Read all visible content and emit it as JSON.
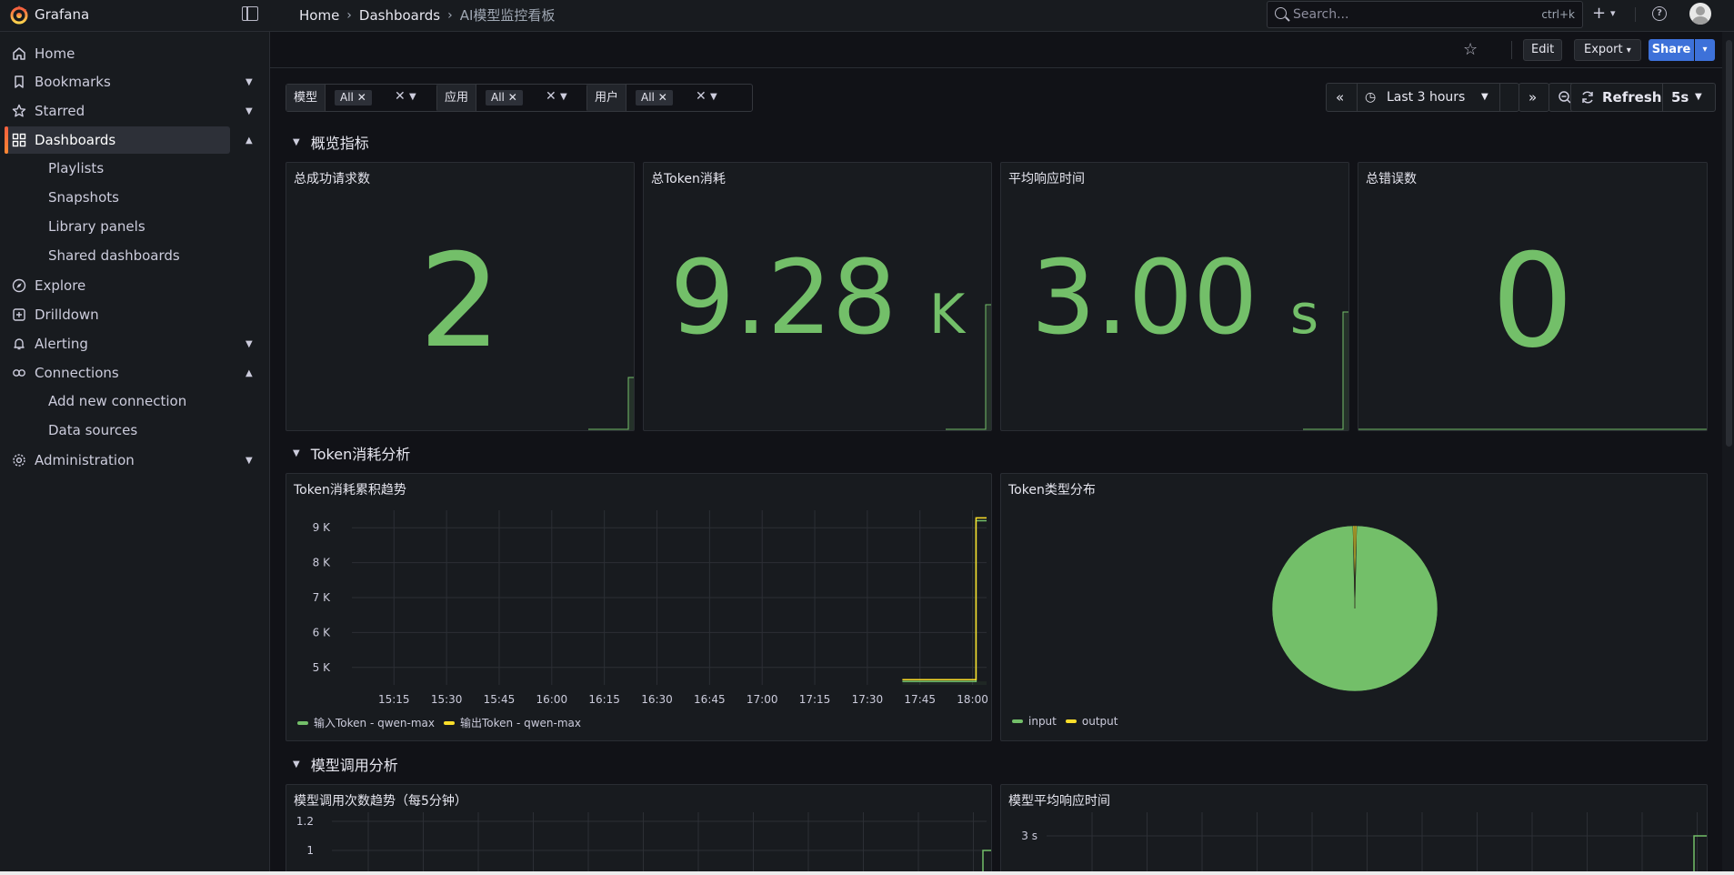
{
  "app": {
    "brand": "Grafana"
  },
  "breadcrumbs": [
    "Home",
    "Dashboards",
    "AI模型监控看板"
  ],
  "search": {
    "placeholder": "Search...",
    "shortcut": "ctrl+k"
  },
  "nav": {
    "home": "Home",
    "bookmarks": "Bookmarks",
    "starred": "Starred",
    "dashboards": "Dashboards",
    "dashboards_children": [
      "Playlists",
      "Snapshots",
      "Library panels",
      "Shared dashboards"
    ],
    "explore": "Explore",
    "drilldown": "Drilldown",
    "alerting": "Alerting",
    "connections": "Connections",
    "connections_children": [
      "Add new connection",
      "Data sources"
    ],
    "administration": "Administration"
  },
  "toolbar": {
    "edit": "Edit",
    "export": "Export",
    "share": "Share"
  },
  "variables": [
    {
      "label": "模型",
      "value": "All"
    },
    {
      "label": "应用",
      "value": "All"
    },
    {
      "label": "用户",
      "value": "All"
    }
  ],
  "timepicker": {
    "range": "Last 3 hours",
    "refresh": "Refresh",
    "interval": "5s"
  },
  "rows": {
    "overview": "概览指标",
    "token": "Token消耗分析",
    "model": "模型调用分析"
  },
  "stats": [
    {
      "title": "总成功请求数",
      "value": "2",
      "unit": ""
    },
    {
      "title": "总Token消耗",
      "value": "9.28",
      "unit": "K"
    },
    {
      "title": "平均响应时间",
      "value": "3.00",
      "unit": "s"
    },
    {
      "title": "总错误数",
      "value": "0",
      "unit": ""
    }
  ],
  "panels": {
    "token_trend": "Token消耗累积趋势",
    "token_type": "Token类型分布",
    "model_calls": "模型调用次数趋势（每5分钟）",
    "model_latency": "模型平均响应时间"
  },
  "colors": {
    "green": "#73bf69",
    "yellow": "#fade2a",
    "orange": "#ff780a",
    "share_blue": "#3d71d9"
  },
  "chart_data": [
    {
      "type": "line",
      "title": "Token消耗累积趋势",
      "x_ticks": [
        "15:15",
        "15:30",
        "15:45",
        "16:00",
        "16:15",
        "16:30",
        "16:45",
        "17:00",
        "17:15",
        "17:30",
        "17:45",
        "18:00"
      ],
      "y_ticks": [
        "5 K",
        "6 K",
        "7 K",
        "8 K",
        "9 K"
      ],
      "ylim": [
        4500,
        9500
      ],
      "series": [
        {
          "name": "输入Token - qwen-max",
          "color": "#73bf69",
          "points": [
            [
              "17:40",
              4600
            ],
            [
              "18:01",
              4600
            ],
            [
              "18:01",
              9200
            ],
            [
              "18:04",
              9200
            ]
          ]
        },
        {
          "name": "输出Token - qwen-max",
          "color": "#fade2a",
          "points": [
            [
              "17:40",
              4650
            ],
            [
              "18:01",
              4650
            ],
            [
              "18:01",
              9280
            ],
            [
              "18:04",
              9280
            ]
          ]
        }
      ]
    },
    {
      "type": "pie",
      "title": "Token类型分布",
      "slices": [
        {
          "name": "input",
          "value": 99.3,
          "color": "#73bf69"
        },
        {
          "name": "output",
          "value": 0.7,
          "color": "#fade2a"
        }
      ]
    },
    {
      "type": "line",
      "title": "模型调用次数趋势（每5分钟）",
      "y_ticks": [
        "1",
        "1.2"
      ]
    },
    {
      "type": "line",
      "title": "模型平均响应时间",
      "y_ticks": [
        "3 s"
      ]
    }
  ]
}
